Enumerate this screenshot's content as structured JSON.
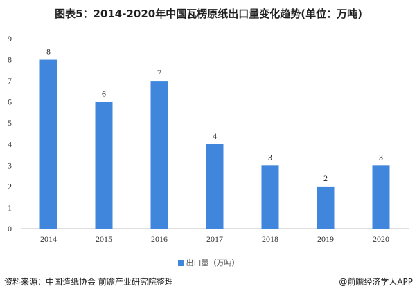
{
  "title": "图表5：2014-2020年中国瓦楞原纸出口量变化趋势(单位：万吨)",
  "legend_label": "出口量（万吨）",
  "source": "资料来源：中国造纸协会 前瞻产业研究院整理",
  "brand": "@前瞻经济学人APP",
  "colors": {
    "bar": "#3f86dc",
    "axis": "#bfbfbf"
  },
  "chart_data": {
    "type": "bar",
    "categories": [
      "2014",
      "2015",
      "2016",
      "2017",
      "2018",
      "2019",
      "2020"
    ],
    "series": [
      {
        "name": "出口量（万吨）",
        "values": [
          8,
          6,
          7,
          4,
          3,
          2,
          3
        ]
      }
    ],
    "ylim": [
      0,
      9
    ],
    "yticks": [
      0,
      1,
      2,
      3,
      4,
      5,
      6,
      7,
      8,
      9
    ],
    "data_labels": true,
    "grid": false,
    "legend_position": "bottom"
  }
}
